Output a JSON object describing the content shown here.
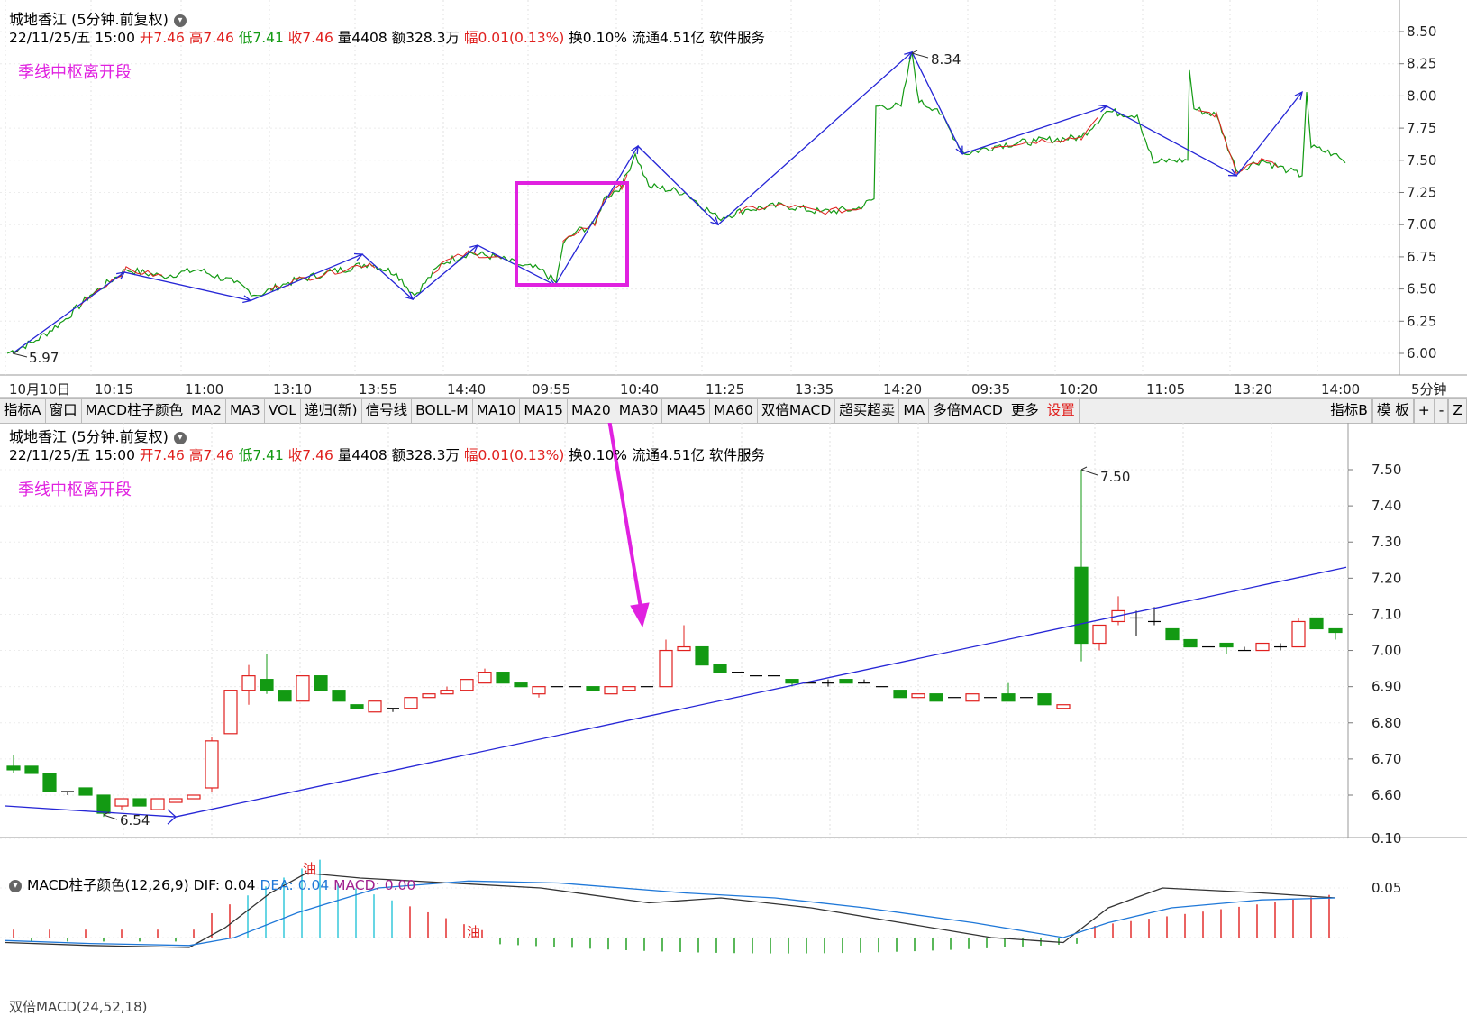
{
  "top_panel": {
    "title": "城地香江 (5分钟.前复权)",
    "info": {
      "date": "22/11/25/五 15:00",
      "open_label": "开",
      "open": "7.46",
      "high_label": "高",
      "high": "7.46",
      "low_label": "低",
      "low": "7.41",
      "close_label": "收",
      "close": "7.46",
      "vol_label": "量",
      "vol": "4408",
      "amt_label": "额",
      "amt": "328.3万",
      "chg_label": "幅",
      "chg": "0.01(0.13%)",
      "turnover": "换0.10%",
      "float": "流通4.51亿",
      "industry": "软件服务"
    },
    "strategy_label": "季线中枢离开段",
    "high_marker": "8.34",
    "low_marker": "5.97",
    "y_ticks": [
      "8.50",
      "8.25",
      "8.00",
      "7.75",
      "7.50",
      "7.25",
      "7.00",
      "6.75",
      "6.50",
      "6.25",
      "6.00"
    ],
    "x_ticks": [
      "10月10日",
      "10:15",
      "11:00",
      "13:10",
      "13:55",
      "14:40",
      "09:55",
      "10:40",
      "11:25",
      "13:35",
      "14:20",
      "09:35",
      "10:20",
      "11:05",
      "13:20",
      "14:00"
    ],
    "period": "5分钟"
  },
  "toolbar": {
    "items": [
      "指标A",
      "窗口",
      "MACD柱子颜色",
      "MA2",
      "MA3",
      "VOL",
      "递归(新)",
      "信号线",
      "BOLL-M",
      "MA10",
      "MA15",
      "MA20",
      "MA30",
      "MA45",
      "MA60",
      "双倍MACD",
      "超买超卖",
      "MA",
      "多倍MACD",
      "更多",
      "设置"
    ],
    "right_items": [
      "指标B",
      "模 板",
      "+",
      "-",
      "Z"
    ]
  },
  "bottom_panel": {
    "title": "城地香江 (5分钟.前复权)",
    "strategy_label": "季线中枢离开段",
    "high_marker": "7.50",
    "low_marker": "6.54",
    "y_ticks": [
      "7.50",
      "7.40",
      "7.30",
      "7.20",
      "7.10",
      "7.00",
      "6.90",
      "6.80",
      "6.70",
      "6.60"
    ]
  },
  "macd": {
    "name": "MACD柱子颜色(12,26,9)",
    "dif": "DIF: 0.04",
    "dea": "DEA: 0.04",
    "macd": "MACD: 0.00",
    "y_ticks": [
      "0.10",
      "0.05"
    ],
    "oil_label": "油"
  },
  "cut_indicator": "双倍MACD(24,52,18)",
  "colors": {
    "up": "#e0201e",
    "down": "#139a13",
    "line": "#2626d6",
    "highlight": "#e021e0"
  }
}
